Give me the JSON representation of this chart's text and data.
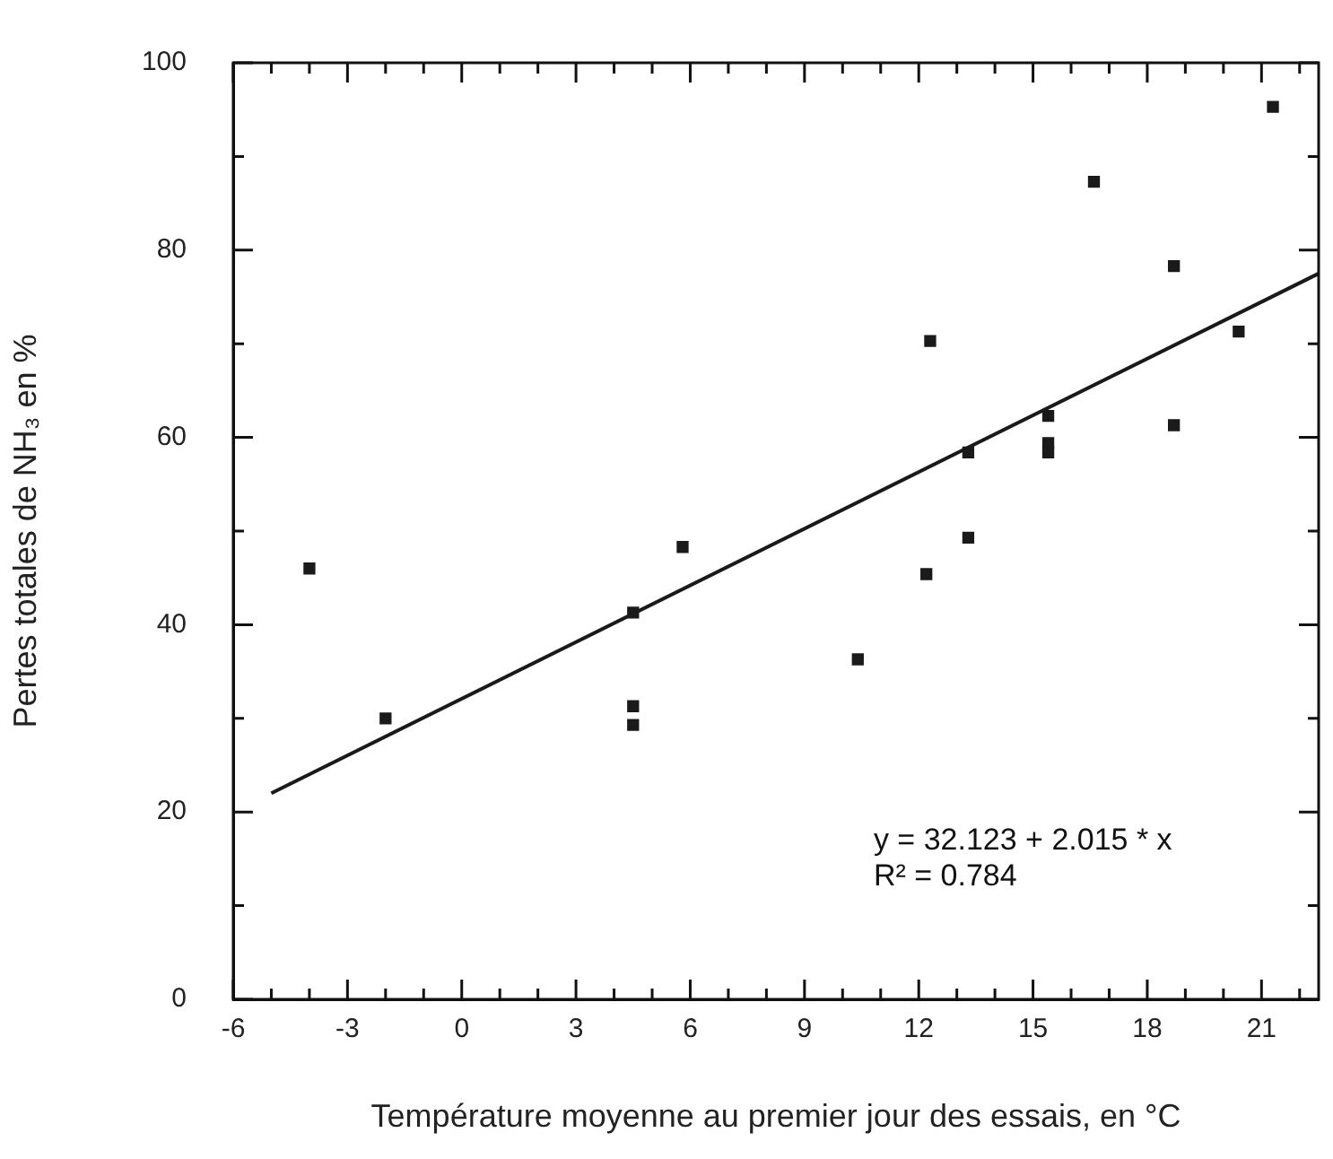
{
  "chart_data": {
    "type": "scatter",
    "xlabel": "Température moyenne au premier jour des essais, en °C",
    "ylabel": "Pertes totales de NH₃ en %",
    "xlim": [
      -6,
      22.5
    ],
    "ylim": [
      0,
      100
    ],
    "xticks": [
      -6,
      {
        "value": -5,
        "label": null
      },
      {
        "value": -4,
        "label": null
      },
      -3,
      {
        "value": -2,
        "label": null
      },
      {
        "value": -1,
        "label": null
      },
      0,
      {
        "value": 1,
        "label": null
      },
      {
        "value": 2,
        "label": null
      },
      3,
      {
        "value": 4,
        "label": null
      },
      {
        "value": 5,
        "label": null
      },
      6,
      {
        "value": 7,
        "label": null
      },
      {
        "value": 8,
        "label": null
      },
      9,
      {
        "value": 10,
        "label": null
      },
      {
        "value": 11,
        "label": null
      },
      12,
      {
        "value": 13,
        "label": null
      },
      {
        "value": 14,
        "label": null
      },
      15,
      {
        "value": 16,
        "label": null
      },
      {
        "value": 17,
        "label": null
      },
      18,
      {
        "value": 19,
        "label": null
      },
      {
        "value": 20,
        "label": null
      },
      21,
      {
        "value": 22,
        "label": null
      }
    ],
    "yticks": [
      0,
      {
        "value": 10,
        "label": null
      },
      20,
      {
        "value": 30,
        "label": null
      },
      40,
      {
        "value": 50,
        "label": null
      },
      60,
      {
        "value": 70,
        "label": null
      },
      80,
      {
        "value": 90,
        "label": null
      },
      100
    ],
    "grid": false,
    "legend": false,
    "marker": "square",
    "series": [
      {
        "color": "#1a1a1a",
        "x": [
          -4,
          -2,
          4.5,
          4.5,
          4.5,
          5.8,
          10.4,
          12.2,
          12.3,
          13.3,
          13.3,
          15.4,
          15.4,
          15.4,
          16.6,
          18.7,
          18.7,
          20.4,
          21.3
        ],
        "values": [
          46,
          30,
          41.3,
          31.3,
          29.3,
          48.3,
          36.3,
          45.4,
          70.3,
          58.4,
          49.3,
          62.3,
          59.4,
          58.4,
          87.3,
          78.3,
          61.3,
          71.3,
          95.3
        ]
      },
      {
        "type": "line",
        "color": "#1a1a1a",
        "marker": "none",
        "x": [
          -5,
          22.5
        ],
        "values": [
          22,
          77.5
        ]
      }
    ],
    "annotations": [
      "y = 32.123 + 2.015 * x",
      "R² = 0.784"
    ]
  }
}
